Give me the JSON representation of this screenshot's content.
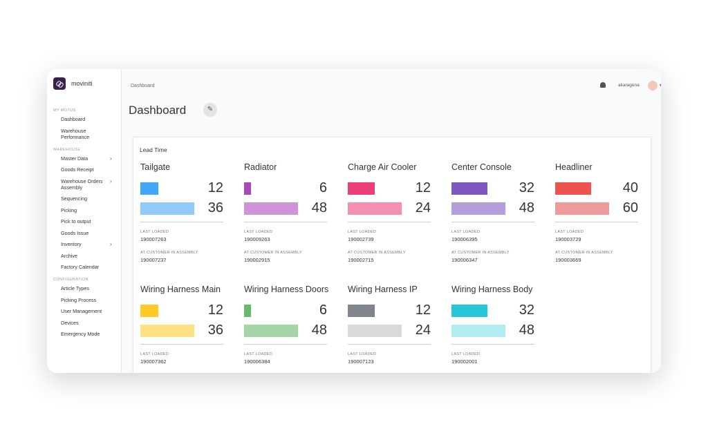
{
  "app": {
    "brand": "moviniti"
  },
  "sidebar": {
    "sections": [
      {
        "heading": "MY MOTUS",
        "items": [
          {
            "label": "Dashboard"
          },
          {
            "label": "Warehouse Performance"
          }
        ]
      },
      {
        "heading": "WAREHOUSE",
        "items": [
          {
            "label": "Master Data",
            "submenu": true
          },
          {
            "label": "Goods Receipt"
          },
          {
            "label": "Warehouse Orders Assembly",
            "submenu": true
          },
          {
            "label": "Sequencing"
          },
          {
            "label": "Picking"
          },
          {
            "label": "Pick to output"
          },
          {
            "label": "Goods Issue"
          },
          {
            "label": "Inventory",
            "submenu": true
          },
          {
            "label": "Archive"
          },
          {
            "label": "Factory Calendar"
          }
        ]
      },
      {
        "heading": "CONFIGURATION",
        "items": [
          {
            "label": "Article Types"
          },
          {
            "label": "Picking Process"
          },
          {
            "label": "User Management"
          },
          {
            "label": "Devices"
          },
          {
            "label": "Emergency Mode"
          }
        ]
      }
    ]
  },
  "header": {
    "breadcrumb": "Dashboard",
    "user": "akaragena"
  },
  "page": {
    "title": "Dashboard"
  },
  "panel": {
    "title": "Lead Time",
    "cards": [
      {
        "name": "Tailgate",
        "metrics": [
          {
            "value": 12,
            "color": "#42a5f5"
          },
          {
            "value": 36,
            "color": "#90caf9"
          }
        ],
        "fields": [
          {
            "label": "LAST LOADED",
            "value": "190007263"
          },
          {
            "label": "AT CUSTOMER IN ASSEMBLY",
            "value": "190007237"
          }
        ]
      },
      {
        "name": "Radiator",
        "metrics": [
          {
            "value": 6,
            "color": "#ab47bc"
          },
          {
            "value": 48,
            "color": "#ce93d8"
          }
        ],
        "fields": [
          {
            "label": "LAST LOADED",
            "value": "190009263"
          },
          {
            "label": "AT CUSTOMER IN ASSEMBLY",
            "value": "190002915"
          }
        ]
      },
      {
        "name": "Charge Air Cooler",
        "metrics": [
          {
            "value": 12,
            "color": "#ec407a"
          },
          {
            "value": 24,
            "color": "#f48fb1"
          }
        ],
        "fields": [
          {
            "label": "LAST LOADED",
            "value": "190002739"
          },
          {
            "label": "AT CUSTOMER IN ASSEMBLY",
            "value": "190002715"
          }
        ]
      },
      {
        "name": "Center Console",
        "metrics": [
          {
            "value": 32,
            "color": "#7e57c2"
          },
          {
            "value": 48,
            "color": "#b39ddb"
          }
        ],
        "fields": [
          {
            "label": "LAST LOADED",
            "value": "190006395"
          },
          {
            "label": "AT CUSTOMER IN ASSEMBLY",
            "value": "190006347"
          }
        ]
      },
      {
        "name": "Headliner",
        "metrics": [
          {
            "value": 40,
            "color": "#ef5350"
          },
          {
            "value": 60,
            "color": "#ef9a9a"
          }
        ],
        "fields": [
          {
            "label": "LAST LOADED",
            "value": "190003729"
          },
          {
            "label": "AT CUSTOMER IN ASSEMBLY",
            "value": "190003669"
          }
        ]
      },
      {
        "name": "Wiring Harness Main",
        "metrics": [
          {
            "value": 12,
            "color": "#ffca28"
          },
          {
            "value": 36,
            "color": "#ffe082"
          }
        ],
        "fields": [
          {
            "label": "LAST LOADED",
            "value": "190007362"
          }
        ]
      },
      {
        "name": "Wiring Harness Doors",
        "metrics": [
          {
            "value": 6,
            "color": "#66bb6a"
          },
          {
            "value": 48,
            "color": "#a5d6a7"
          }
        ],
        "fields": [
          {
            "label": "LAST LOADED",
            "value": "190006384"
          }
        ]
      },
      {
        "name": "Wiring Harness IP",
        "metrics": [
          {
            "value": 12,
            "color": "#80848c"
          },
          {
            "value": 24,
            "color": "#d9d9d9"
          }
        ],
        "fields": [
          {
            "label": "LAST LOADED",
            "value": "190007123"
          }
        ]
      },
      {
        "name": "Wiring Harness Body",
        "metrics": [
          {
            "value": 32,
            "color": "#26c6da"
          },
          {
            "value": 48,
            "color": "#b2ebf2"
          }
        ],
        "fields": [
          {
            "label": "LAST LOADED",
            "value": "190002001"
          }
        ]
      }
    ]
  }
}
